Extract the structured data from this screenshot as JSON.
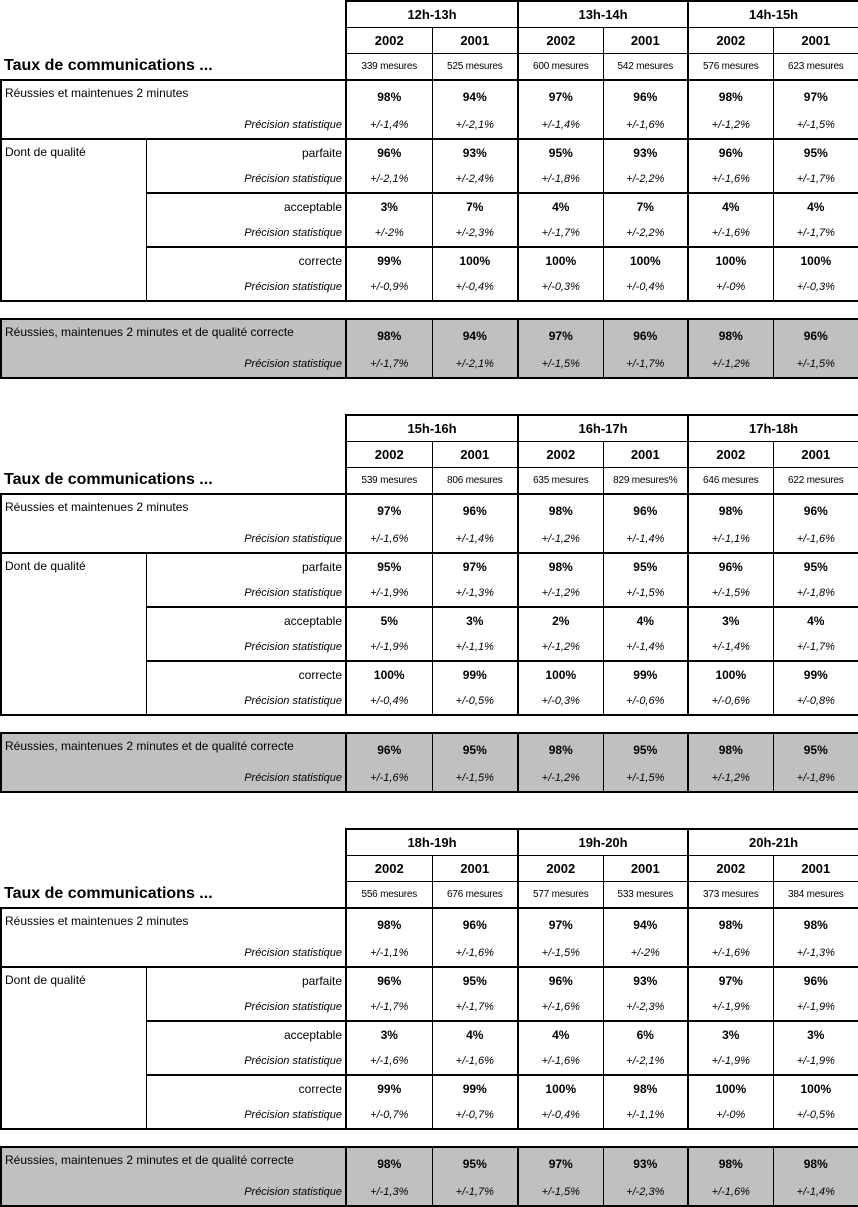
{
  "labels": {
    "title": "Taux de communications ...",
    "years": [
      "2002",
      "2001"
    ],
    "reussies": "Réussies et maintenues 2 minutes",
    "dont": "Dont de qualité",
    "parfaite": "parfaite",
    "acceptable": "acceptable",
    "correcte": "correcte",
    "precision": "Précision statistique",
    "summary": "Réussies, maintenues 2 minutes et de  qualité correcte"
  },
  "blocks": [
    {
      "hours": [
        "12h-13h",
        "13h-14h",
        "14h-15h"
      ],
      "mesures": [
        "339 mesures",
        "525 mesures",
        "600 mesures",
        "542 mesures",
        "576 mesures",
        "623 mesures"
      ],
      "reussies": {
        "values": [
          "98%",
          "94%",
          "97%",
          "96%",
          "98%",
          "97%"
        ],
        "precision": [
          "+/-1,4%",
          "+/-2,1%",
          "+/-1,4%",
          "+/-1,6%",
          "+/-1,2%",
          "+/-1,5%"
        ]
      },
      "parfaite": {
        "values": [
          "96%",
          "93%",
          "95%",
          "93%",
          "96%",
          "95%"
        ],
        "precision": [
          "+/-2,1%",
          "+/-2,4%",
          "+/-1,8%",
          "+/-2,2%",
          "+/-1,6%",
          "+/-1,7%"
        ]
      },
      "acceptable": {
        "values": [
          "3%",
          "7%",
          "4%",
          "7%",
          "4%",
          "4%"
        ],
        "precision": [
          "+/-2%",
          "+/-2,3%",
          "+/-1,7%",
          "+/-2,2%",
          "+/-1,6%",
          "+/-1,7%"
        ]
      },
      "correcte": {
        "values": [
          "99%",
          "100%",
          "100%",
          "100%",
          "100%",
          "100%"
        ],
        "precision": [
          "+/-0,9%",
          "+/-0,4%",
          "+/-0,3%",
          "+/-0,4%",
          "+/-0%",
          "+/-0,3%"
        ]
      },
      "summary": {
        "values": [
          "98%",
          "94%",
          "97%",
          "96%",
          "98%",
          "96%"
        ],
        "precision": [
          "+/-1,7%",
          "+/-2,1%",
          "+/-1,5%",
          "+/-1,7%",
          "+/-1,2%",
          "+/-1,5%"
        ]
      }
    },
    {
      "hours": [
        "15h-16h",
        "16h-17h",
        "17h-18h"
      ],
      "mesures": [
        "539 mesures",
        "806 mesures",
        "635 mesures",
        "829 mesures%",
        "646 mesures",
        "622 mesures"
      ],
      "reussies": {
        "values": [
          "97%",
          "96%",
          "98%",
          "96%",
          "98%",
          "96%"
        ],
        "precision": [
          "+/-1,6%",
          "+/-1,4%",
          "+/-1,2%",
          "+/-1,4%",
          "+/-1,1%",
          "+/-1,6%"
        ]
      },
      "parfaite": {
        "values": [
          "95%",
          "97%",
          "98%",
          "95%",
          "96%",
          "95%"
        ],
        "precision": [
          "+/-1,9%",
          "+/-1,3%",
          "+/-1,2%",
          "+/-1,5%",
          "+/-1,5%",
          "+/-1,8%"
        ]
      },
      "acceptable": {
        "values": [
          "5%",
          "3%",
          "2%",
          "4%",
          "3%",
          "4%"
        ],
        "precision": [
          "+/-1,9%",
          "+/-1,1%",
          "+/-1,2%",
          "+/-1,4%",
          "+/-1,4%",
          "+/-1,7%"
        ]
      },
      "correcte": {
        "values": [
          "100%",
          "99%",
          "100%",
          "99%",
          "100%",
          "99%"
        ],
        "precision": [
          "+/-0,4%",
          "+/-0,5%",
          "+/-0,3%",
          "+/-0,6%",
          "+/-0,6%",
          "+/-0,8%"
        ]
      },
      "summary": {
        "values": [
          "96%",
          "95%",
          "98%",
          "95%",
          "98%",
          "95%"
        ],
        "precision": [
          "+/-1,6%",
          "+/-1,5%",
          "+/-1,2%",
          "+/-1,5%",
          "+/-1,2%",
          "+/-1,8%"
        ]
      }
    },
    {
      "hours": [
        "18h-19h",
        "19h-20h",
        "20h-21h"
      ],
      "mesures": [
        "556 mesures",
        "676 mesures",
        "577 mesures",
        "533 mesures",
        "373 mesures",
        "384 mesures"
      ],
      "reussies": {
        "values": [
          "98%",
          "96%",
          "97%",
          "94%",
          "98%",
          "98%"
        ],
        "precision": [
          "+/-1,1%",
          "+/-1,6%",
          "+/-1,5%",
          "+/-2%",
          "+/-1,6%",
          "+/-1,3%"
        ]
      },
      "parfaite": {
        "values": [
          "96%",
          "95%",
          "96%",
          "93%",
          "97%",
          "96%"
        ],
        "precision": [
          "+/-1,7%",
          "+/-1,7%",
          "+/-1,6%",
          "+/-2,3%",
          "+/-1,9%",
          "+/-1,9%"
        ]
      },
      "acceptable": {
        "values": [
          "3%",
          "4%",
          "4%",
          "6%",
          "3%",
          "3%"
        ],
        "precision": [
          "+/-1,6%",
          "+/-1,6%",
          "+/-1,6%",
          "+/-2,1%",
          "+/-1,9%",
          "+/-1,9%"
        ]
      },
      "correcte": {
        "values": [
          "99%",
          "99%",
          "100%",
          "98%",
          "100%",
          "100%"
        ],
        "precision": [
          "+/-0,7%",
          "+/-0,7%",
          "+/-0,4%",
          "+/-1,1%",
          "+/-0%",
          "+/-0,5%"
        ]
      },
      "summary": {
        "values": [
          "98%",
          "95%",
          "97%",
          "93%",
          "98%",
          "98%"
        ],
        "precision": [
          "+/-1,3%",
          "+/-1,7%",
          "+/-1,5%",
          "+/-2,3%",
          "+/-1,6%",
          "+/-1,4%"
        ]
      }
    }
  ]
}
